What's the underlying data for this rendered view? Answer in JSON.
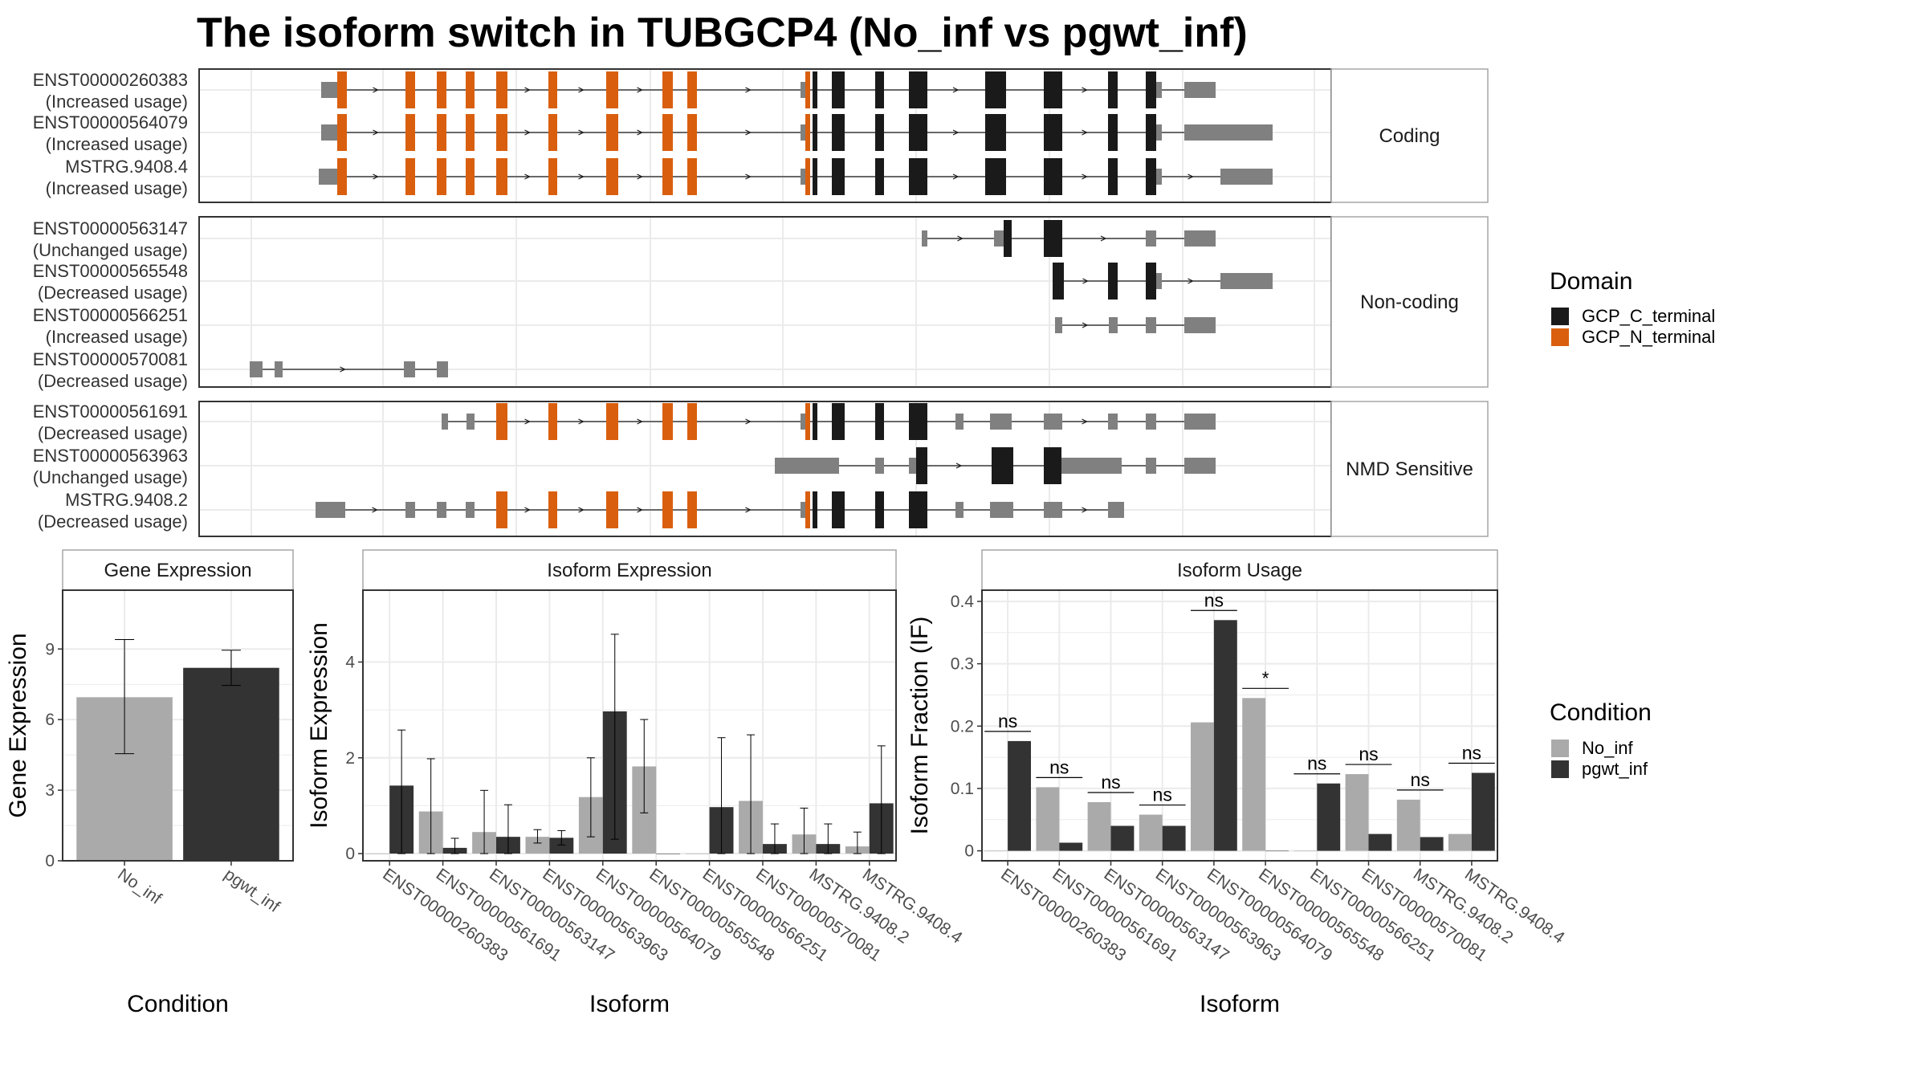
{
  "title": "The isoform switch in TUBGCP4 (No_inf vs pgwt_inf)",
  "colors": {
    "gcp_c": "#1a1a1a",
    "gcp_n": "#d95f0e",
    "utr": "#808080",
    "no_inf": "#aaaaaa",
    "pgwt_inf": "#333333",
    "grid": "#ebebeb",
    "strip_fill": "#ffffff",
    "border": "#333333"
  },
  "transcripts": {
    "legend_title": "Domain",
    "legend": [
      {
        "label": "GCP_C_terminal",
        "color": "#1a1a1a"
      },
      {
        "label": "GCP_N_terminal",
        "color": "#d95f0e"
      }
    ],
    "facets": [
      {
        "name": "Coding",
        "isoforms": [
          {
            "id": "ENST00000260383",
            "usage": "(Increased usage)"
          },
          {
            "id": "ENST00000564079",
            "usage": "(Increased usage)"
          },
          {
            "id": "MSTRG.9408.4",
            "usage": "(Increased usage)"
          }
        ]
      },
      {
        "name": "Non-coding",
        "isoforms": [
          {
            "id": "ENST00000563147",
            "usage": "(Unchanged usage)"
          },
          {
            "id": "ENST00000565548",
            "usage": "(Decreased usage)"
          },
          {
            "id": "ENST00000566251",
            "usage": "(Increased usage)"
          },
          {
            "id": "ENST00000570081",
            "usage": "(Decreased usage)"
          }
        ]
      },
      {
        "name": "NMD Sensitive",
        "isoforms": [
          {
            "id": "ENST00000561691",
            "usage": "(Decreased usage)"
          },
          {
            "id": "ENST00000563963",
            "usage": "(Unchanged usage)"
          },
          {
            "id": "MSTRG.9408.2",
            "usage": "(Decreased usage)"
          }
        ]
      }
    ]
  },
  "chart_data": [
    {
      "type": "bar",
      "panel": "Gene Expression",
      "categories": [
        "No_inf",
        "pgwt_inf"
      ],
      "values": [
        6.95,
        8.2
      ],
      "error_low": [
        4.55,
        7.45
      ],
      "error_high": [
        9.4,
        8.95
      ],
      "xlabel": "Condition",
      "ylabel": "Gene Expression",
      "ylim": [
        0,
        11.5
      ],
      "yticks": [
        0,
        3,
        6,
        9
      ]
    },
    {
      "type": "bar",
      "panel": "Isoform Expression",
      "categories": [
        "ENST00000260383",
        "ENST00000561691",
        "ENST00000563147",
        "ENST00000563963",
        "ENST00000564079",
        "ENST00000565548",
        "ENST00000566251",
        "ENST00000570081",
        "MSTRG.9408.2",
        "MSTRG.9408.4"
      ],
      "series": [
        {
          "name": "No_inf",
          "values": [
            0.0,
            0.88,
            0.45,
            0.35,
            1.18,
            1.82,
            0.0,
            1.1,
            0.4,
            0.15
          ],
          "error_low": [
            0.0,
            0.0,
            0.0,
            0.22,
            0.35,
            0.85,
            0.0,
            0.0,
            0.0,
            0.0
          ],
          "error_high": [
            0.0,
            1.98,
            1.32,
            0.5,
            2.0,
            2.8,
            0.0,
            2.48,
            0.95,
            0.45
          ]
        },
        {
          "name": "pgwt_inf",
          "values": [
            1.42,
            0.12,
            0.35,
            0.33,
            2.97,
            0.0,
            0.97,
            0.2,
            0.2,
            1.05
          ],
          "error_low": [
            0.0,
            0.0,
            0.0,
            0.18,
            0.3,
            0.0,
            0.0,
            0.0,
            0.0,
            0.0
          ],
          "error_high": [
            2.58,
            0.32,
            1.02,
            0.48,
            4.58,
            0.0,
            2.42,
            0.62,
            0.62,
            2.25
          ]
        }
      ],
      "xlabel": "Isoform",
      "ylabel": "Isoform Expression",
      "ylim": [
        -0.15,
        5.5
      ],
      "yticks": [
        0,
        2,
        4
      ]
    },
    {
      "type": "bar",
      "panel": "Isoform Usage",
      "categories": [
        "ENST00000260383",
        "ENST00000561691",
        "ENST00000563147",
        "ENST00000563963",
        "ENST00000564079",
        "ENST00000565548",
        "ENST00000566251",
        "ENST00000570081",
        "MSTRG.9408.2",
        "MSTRG.9408.4"
      ],
      "series": [
        {
          "name": "No_inf",
          "values": [
            0.0,
            0.102,
            0.078,
            0.058,
            0.206,
            0.245,
            0.0,
            0.123,
            0.082,
            0.027
          ]
        },
        {
          "name": "pgwt_inf",
          "values": [
            0.176,
            0.013,
            0.04,
            0.04,
            0.37,
            0.0,
            0.108,
            0.027,
            0.022,
            0.125
          ]
        }
      ],
      "significance": [
        "ns",
        "ns",
        "ns",
        "ns",
        "ns",
        "*",
        "ns",
        "ns",
        "ns",
        "ns"
      ],
      "xlabel": "Isoform",
      "ylabel": "Isoform Fraction (IF)",
      "ylim": [
        -0.016,
        0.418
      ],
      "yticks": [
        0.0,
        0.1,
        0.2,
        0.3,
        0.4
      ]
    }
  ],
  "condition_legend": {
    "title": "Condition",
    "items": [
      {
        "label": "No_inf",
        "color": "#aaaaaa"
      },
      {
        "label": "pgwt_inf",
        "color": "#333333"
      }
    ]
  }
}
